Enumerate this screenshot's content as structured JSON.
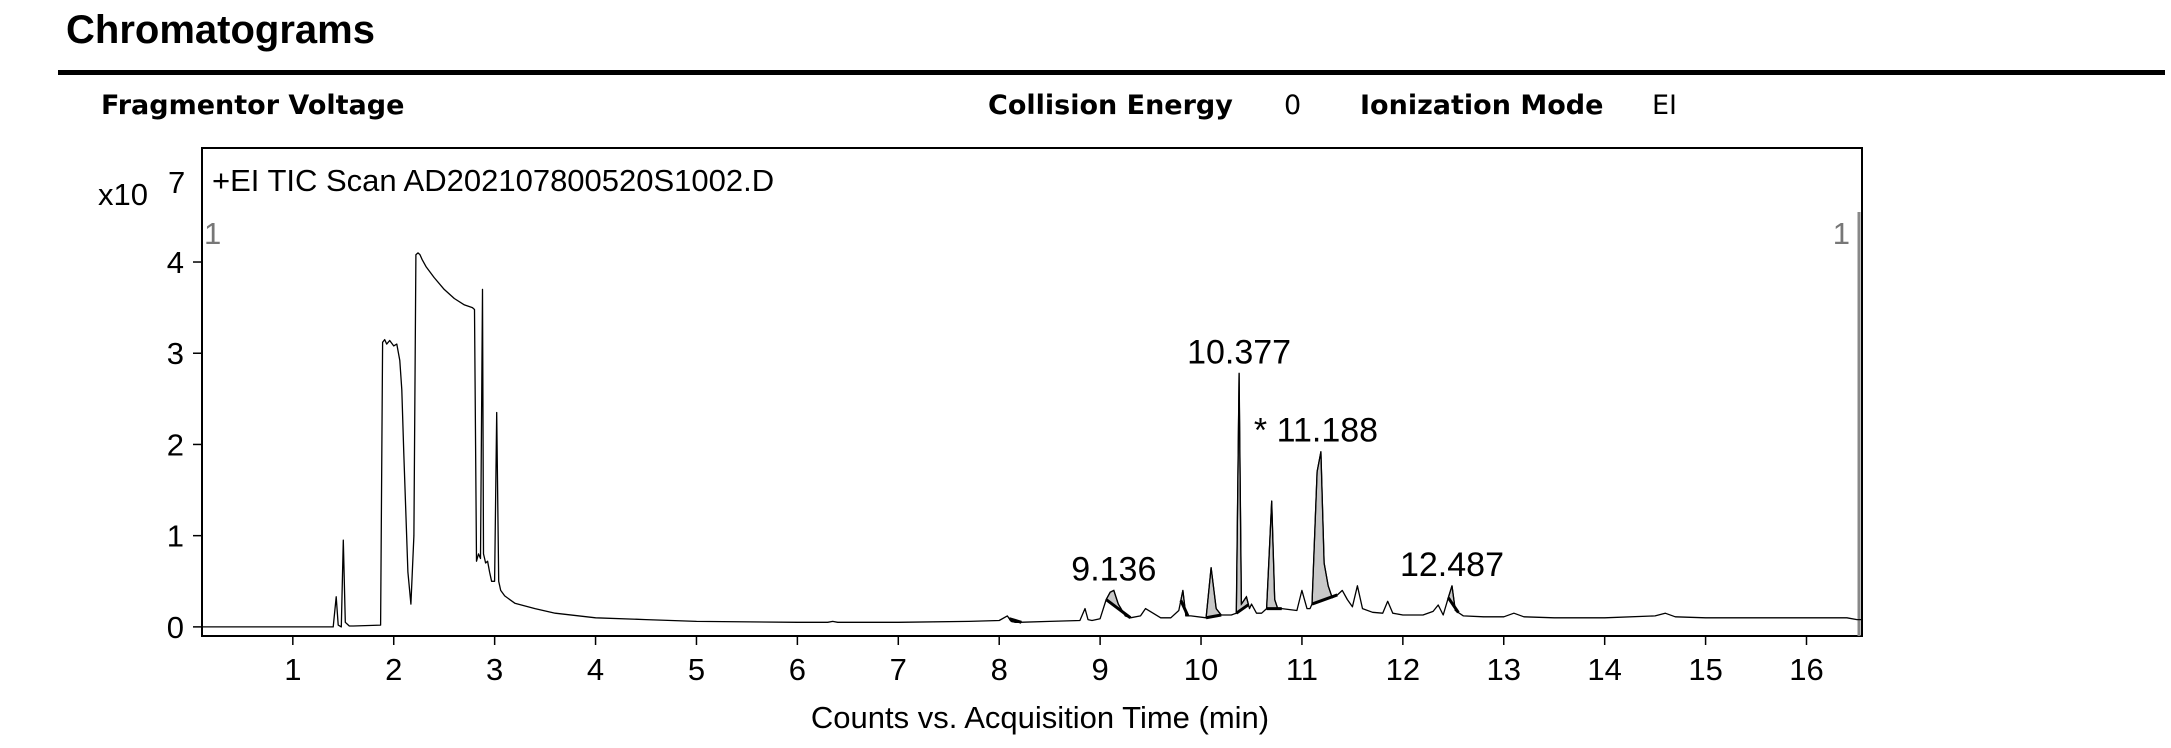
{
  "page": {
    "title": "Chromatograms"
  },
  "header": {
    "fragmentor_label": "Fragmentor Voltage",
    "collision_label": "Collision Energy",
    "collision_value": "0",
    "ionization_label": "Ionization Mode",
    "ionization_value": "EI"
  },
  "chart_data": {
    "type": "line",
    "title": "+EI TIC Scan AD202107800520S1002.D",
    "xlabel": "Counts vs. Acquisition Time (min)",
    "y_multiplier": "x10",
    "y_exponent": "7",
    "xlim": [
      0.1,
      16.55
    ],
    "ylim": [
      -0.1,
      5.25
    ],
    "x_ticks": [
      1,
      2,
      3,
      4,
      5,
      6,
      7,
      8,
      9,
      10,
      11,
      12,
      13,
      14,
      15,
      16
    ],
    "y_ticks": [
      0,
      1,
      2,
      3,
      4
    ],
    "corner_markers": {
      "left": "1",
      "right": "1"
    },
    "series": [
      {
        "x": [
          0.1,
          1.4,
          1.43,
          1.45,
          1.48,
          1.5,
          1.52,
          1.56,
          1.6,
          1.87,
          1.89,
          1.91,
          1.93,
          1.96,
          2.0,
          2.03,
          2.06,
          2.08,
          2.1,
          2.14,
          2.17,
          2.2,
          2.22,
          2.24,
          2.26,
          2.28,
          2.32,
          2.4,
          2.5,
          2.6,
          2.7,
          2.78,
          2.8,
          2.82,
          2.84,
          2.86,
          2.88,
          2.89,
          2.9,
          2.91,
          2.93,
          2.95,
          2.97,
          3.0,
          3.02,
          3.04,
          3.06,
          3.1,
          3.2,
          3.4,
          3.6,
          4.0,
          4.5,
          5.0,
          6.0,
          6.3,
          6.35,
          6.4,
          7.0,
          7.7,
          8.0,
          8.08,
          8.12,
          8.16,
          8.2,
          8.5,
          8.8,
          8.85,
          8.88,
          8.92,
          9.0,
          9.06,
          9.1,
          9.136,
          9.18,
          9.25,
          9.3,
          9.4,
          9.45,
          9.6,
          9.7,
          9.78,
          9.82,
          9.85,
          9.9,
          10.05,
          10.1,
          10.15,
          10.2,
          10.3,
          10.35,
          10.377,
          10.4,
          10.45,
          10.48,
          10.5,
          10.55,
          10.6,
          10.65,
          10.7,
          10.73,
          10.76,
          10.8,
          10.95,
          11.0,
          11.05,
          11.08,
          11.1,
          11.15,
          11.188,
          11.22,
          11.26,
          11.3,
          11.35,
          11.4,
          11.45,
          11.5,
          11.55,
          11.6,
          11.7,
          11.8,
          11.85,
          11.9,
          12.0,
          12.2,
          12.3,
          12.35,
          12.4,
          12.45,
          12.487,
          12.52,
          12.6,
          12.8,
          13.0,
          13.1,
          13.2,
          13.5,
          14.0,
          14.5,
          14.6,
          14.7,
          15.0,
          15.5,
          16.0,
          16.4,
          16.5,
          16.55
        ],
        "y": [
          0.0,
          0.0,
          0.33,
          0.02,
          0.0,
          0.95,
          0.05,
          0.01,
          0.01,
          0.02,
          3.12,
          3.15,
          3.1,
          3.14,
          3.08,
          3.1,
          2.92,
          2.6,
          1.9,
          0.6,
          0.25,
          1.0,
          4.08,
          4.1,
          4.08,
          4.03,
          3.95,
          3.83,
          3.7,
          3.6,
          3.53,
          3.5,
          3.48,
          0.72,
          0.8,
          0.75,
          3.7,
          0.8,
          0.75,
          0.7,
          0.72,
          0.6,
          0.5,
          0.5,
          2.35,
          0.5,
          0.4,
          0.34,
          0.26,
          0.2,
          0.15,
          0.1,
          0.08,
          0.06,
          0.05,
          0.05,
          0.06,
          0.05,
          0.05,
          0.06,
          0.07,
          0.12,
          0.06,
          0.05,
          0.05,
          0.06,
          0.07,
          0.2,
          0.08,
          0.07,
          0.09,
          0.3,
          0.38,
          0.4,
          0.25,
          0.12,
          0.1,
          0.12,
          0.2,
          0.1,
          0.1,
          0.18,
          0.4,
          0.12,
          0.12,
          0.1,
          0.65,
          0.2,
          0.13,
          0.13,
          0.15,
          2.78,
          0.25,
          0.33,
          0.2,
          0.25,
          0.15,
          0.15,
          0.2,
          1.38,
          0.3,
          0.2,
          0.2,
          0.18,
          0.4,
          0.2,
          0.2,
          0.25,
          1.7,
          1.92,
          0.7,
          0.45,
          0.32,
          0.35,
          0.4,
          0.3,
          0.22,
          0.45,
          0.2,
          0.16,
          0.15,
          0.28,
          0.15,
          0.13,
          0.13,
          0.17,
          0.24,
          0.13,
          0.32,
          0.45,
          0.18,
          0.12,
          0.11,
          0.11,
          0.15,
          0.11,
          0.1,
          0.1,
          0.12,
          0.15,
          0.11,
          0.1,
          0.1,
          0.1,
          0.1,
          0.08,
          0.08
        ]
      }
    ],
    "shaded_peaks": [
      {
        "x": [
          8.1,
          8.22
        ]
      },
      {
        "x": [
          9.06,
          9.3
        ]
      },
      {
        "x": [
          9.8,
          9.87
        ]
      },
      {
        "x": [
          10.05,
          10.2
        ]
      },
      {
        "x": [
          10.35,
          10.47
        ]
      },
      {
        "x": [
          10.65,
          10.8
        ]
      },
      {
        "x": [
          11.1,
          11.35
        ]
      },
      {
        "x": [
          12.45,
          12.55
        ]
      }
    ],
    "annotations": [
      {
        "x": 10.377,
        "y": 2.78,
        "text": "10.377"
      },
      {
        "x": 11.188,
        "y": 1.92,
        "text": "* 11.188"
      },
      {
        "x": 9.136,
        "y": 0.4,
        "text": "9.136"
      },
      {
        "x": 12.487,
        "y": 0.45,
        "text": "12.487"
      }
    ]
  }
}
